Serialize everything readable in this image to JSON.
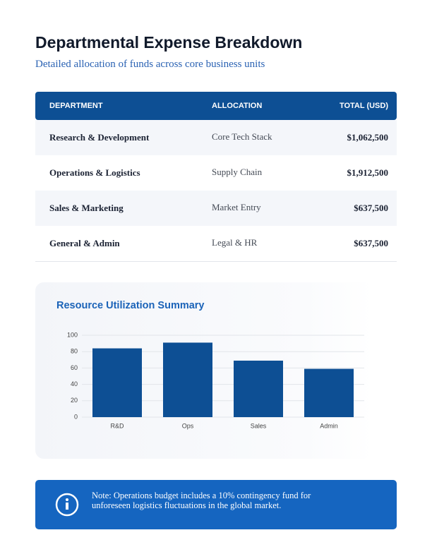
{
  "header": {
    "title": "Departmental Expense Breakdown",
    "subtitle": "Detailed allocation of funds across core business units"
  },
  "table": {
    "columns": [
      "DEPARTMENT",
      "ALLOCATION",
      "TOTAL (USD)"
    ],
    "rows": [
      [
        "Research & Development",
        "Core Tech Stack",
        "$1,062,500"
      ],
      [
        "Operations & Logistics",
        "Supply Chain",
        "$1,912,500"
      ],
      [
        "Sales & Marketing",
        "Market Entry",
        "$637,500"
      ],
      [
        "General & Admin",
        "Legal & HR",
        "$637,500"
      ]
    ]
  },
  "chart_data": {
    "type": "bar",
    "title": "Resource Utilization Summary",
    "categories": [
      "R&D",
      "Ops",
      "Sales",
      "Admin"
    ],
    "values": [
      84,
      91,
      69,
      59
    ],
    "color": "#0d4f94",
    "ylim": [
      0,
      100
    ],
    "yticks": [
      0,
      20,
      40,
      60,
      80,
      100
    ],
    "grid": true
  },
  "note": {
    "text": "Note: Operations budget includes a 10% contingency fund for unforeseen logistics fluctuations in the global market."
  }
}
